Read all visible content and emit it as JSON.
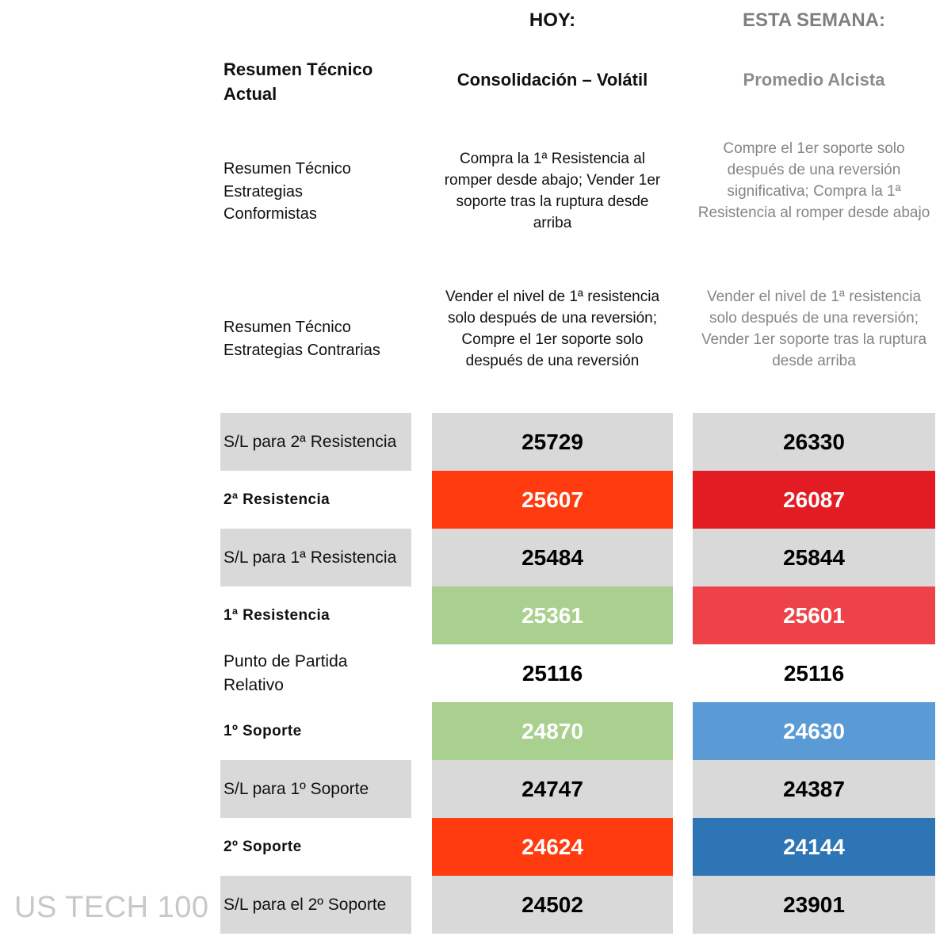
{
  "headers": {
    "today": "HOY:",
    "week": "ESTA SEMANA:"
  },
  "summary": {
    "label": "Resumen Técnico Actual",
    "today": "Consolidación – Volátil",
    "week": "Promedio Alcista"
  },
  "conformist": {
    "label": "Resumen Técnico Estrategias Conformistas",
    "today": "Compra la 1ª Resistencia al romper desde abajo; Vender 1er soporte tras la ruptura desde arriba",
    "week": "Compre el 1er soporte solo después de una reversión significativa; Compra la 1ª Resistencia al romper desde abajo"
  },
  "contrarian": {
    "label": "Resumen Técnico Estrategias Contrarias",
    "today": "Vender el nivel de 1ª resistencia solo después de una reversión; Compre el 1er soporte solo después de una reversión",
    "week": "Vender el nivel de 1ª resistencia solo después de una reversión; Vender 1er soporte tras la ruptura desde arriba"
  },
  "levels": [
    {
      "label": "S/L para 2ª Resistencia",
      "today": "25729",
      "week": "26330",
      "today_color": "#d9d9d9",
      "week_color": "#d9d9d9"
    },
    {
      "label": "2ª Resistencia",
      "today": "25607",
      "week": "26087",
      "today_color": "#ff3b0f",
      "week_color": "#e31b23"
    },
    {
      "label": "S/L para 1ª Resistencia",
      "today": "25484",
      "week": "25844",
      "today_color": "#d9d9d9",
      "week_color": "#d9d9d9"
    },
    {
      "label": "1ª Resistencia",
      "today": "25361",
      "week": "25601",
      "today_color": "#a9d08e",
      "week_color": "#ee4249"
    },
    {
      "label": "Punto de Partida Relativo",
      "today": "25116",
      "week": "25116",
      "today_color": "#ffffff",
      "week_color": "#ffffff"
    },
    {
      "label": "1º Soporte",
      "today": "24870",
      "week": "24630",
      "today_color": "#a9d08e",
      "week_color": "#5b9bd5"
    },
    {
      "label": "S/L para 1º Soporte",
      "today": "24747",
      "week": "24387",
      "today_color": "#d9d9d9",
      "week_color": "#d9d9d9"
    },
    {
      "label": "2º Soporte",
      "today": "24624",
      "week": "24144",
      "today_color": "#ff3b0f",
      "week_color": "#2e75b6"
    },
    {
      "label": "S/L para el 2º Soporte",
      "today": "24502",
      "week": "23901",
      "today_color": "#d9d9d9",
      "week_color": "#d9d9d9"
    }
  ],
  "watermark": "US TECH 100"
}
